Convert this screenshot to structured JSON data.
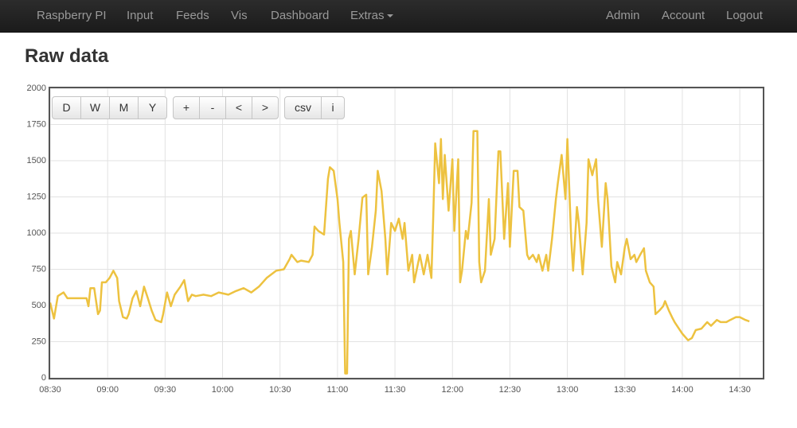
{
  "nav": {
    "left": [
      "Raspberry PI",
      "Input",
      "Feeds",
      "Vis",
      "Dashboard",
      "Extras"
    ],
    "right": [
      "Admin",
      "Account",
      "Logout"
    ]
  },
  "page_title": "Raw data",
  "toolbar": {
    "range": [
      "D",
      "W",
      "M",
      "Y"
    ],
    "move": [
      "+",
      "-",
      "<",
      ">"
    ],
    "tools": [
      "csv",
      "i"
    ]
  },
  "chart_data": {
    "type": "line",
    "color": "#edc240",
    "grid": true,
    "xlim": [
      "08:30",
      "14:42"
    ],
    "xticks": [
      "08:30",
      "09:00",
      "09:30",
      "10:00",
      "10:30",
      "11:00",
      "11:30",
      "12:00",
      "12:30",
      "13:00",
      "13:30",
      "14:00",
      "14:30"
    ],
    "ylim": [
      0,
      2000
    ],
    "yticks": [
      0,
      250,
      500,
      750,
      1000,
      1250,
      1500,
      1750,
      2000
    ],
    "x": [
      "08:30",
      "08:32",
      "08:34",
      "08:37",
      "08:39",
      "08:49",
      "08:50",
      "08:51",
      "08:53",
      "08:55",
      "08:56",
      "08:57",
      "08:59",
      "09:01",
      "09:03",
      "09:05",
      "09:06",
      "09:08",
      "09:10",
      "09:11",
      "09:13",
      "09:15",
      "09:17",
      "09:19",
      "09:21",
      "09:23",
      "09:25",
      "09:28",
      "09:29",
      "09:31",
      "09:33",
      "09:35",
      "09:38",
      "09:40",
      "09:42",
      "09:44",
      "09:46",
      "09:50",
      "09:54",
      "09:58",
      "10:03",
      "10:07",
      "10:11",
      "10:15",
      "10:19",
      "10:23",
      "10:28",
      "10:32",
      "10:35",
      "10:36",
      "10:39",
      "10:41",
      "10:45",
      "10:47",
      "10:48",
      "10:50",
      "10:53",
      "10:55",
      "10:56",
      "10:58",
      "11:00",
      "11:01",
      "11:03",
      "11:04",
      "11:05",
      "11:06",
      "11:07",
      "11:09",
      "11:11",
      "11:13",
      "11:15",
      "11:16",
      "11:18",
      "11:20",
      "11:21",
      "11:23",
      "11:25",
      "11:26",
      "11:28",
      "11:30",
      "11:32",
      "11:34",
      "11:35",
      "11:37",
      "11:39",
      "11:40",
      "11:43",
      "11:45",
      "11:47",
      "11:49",
      "11:50",
      "11:51",
      "11:53",
      "11:54",
      "11:55",
      "11:56",
      "11:58",
      "12:00",
      "12:01",
      "12:03",
      "12:04",
      "12:05",
      "12:07",
      "12:08",
      "12:10",
      "12:11",
      "12:13",
      "12:14",
      "12:15",
      "12:17",
      "12:19",
      "12:20",
      "12:22",
      "12:24",
      "12:25",
      "12:27",
      "12:29",
      "12:30",
      "12:32",
      "12:34",
      "12:35",
      "12:37",
      "12:39",
      "12:40",
      "12:42",
      "12:44",
      "12:45",
      "12:47",
      "12:49",
      "12:50",
      "12:52",
      "12:54",
      "12:55",
      "12:57",
      "12:59",
      "13:00",
      "13:02",
      "13:03",
      "13:05",
      "13:06",
      "13:08",
      "13:10",
      "13:11",
      "13:13",
      "13:15",
      "13:16",
      "13:18",
      "13:20",
      "13:21",
      "13:23",
      "13:25",
      "13:26",
      "13:28",
      "13:30",
      "13:31",
      "13:33",
      "13:35",
      "13:36",
      "13:38",
      "13:40",
      "13:41",
      "13:43",
      "13:45",
      "13:46",
      "13:48",
      "13:50",
      "13:51",
      "13:53",
      "13:55",
      "13:56",
      "13:58",
      "14:00",
      "14:03",
      "14:05",
      "14:07",
      "14:10",
      "14:13",
      "14:15",
      "14:18",
      "14:20",
      "14:23",
      "14:25",
      "14:28",
      "14:30",
      "14:33",
      "14:35"
    ],
    "values": [
      520,
      410,
      565,
      590,
      550,
      550,
      495,
      620,
      620,
      440,
      465,
      660,
      660,
      690,
      740,
      690,
      530,
      420,
      410,
      440,
      550,
      600,
      495,
      630,
      550,
      465,
      400,
      385,
      440,
      590,
      495,
      575,
      630,
      675,
      530,
      575,
      565,
      575,
      565,
      590,
      575,
      600,
      620,
      590,
      630,
      690,
      740,
      750,
      820,
      850,
      800,
      810,
      800,
      850,
      1045,
      1015,
      990,
      1375,
      1455,
      1430,
      1235,
      1070,
      800,
      30,
      30,
      960,
      1015,
      715,
      960,
      1245,
      1265,
      715,
      905,
      1155,
      1430,
      1290,
      960,
      715,
      1070,
      1015,
      1100,
      960,
      1070,
      740,
      850,
      660,
      850,
      715,
      850,
      690,
      1125,
      1620,
      1345,
      1650,
      1235,
      1540,
      1155,
      1510,
      1015,
      1510,
      660,
      740,
      1015,
      960,
      1210,
      1705,
      1705,
      800,
      660,
      740,
      1235,
      850,
      960,
      1565,
      1565,
      960,
      1345,
      905,
      1430,
      1430,
      1180,
      1155,
      850,
      820,
      850,
      800,
      850,
      740,
      850,
      740,
      960,
      1235,
      1345,
      1540,
      1235,
      1650,
      960,
      740,
      1180,
      1070,
      715,
      1070,
      1510,
      1400,
      1510,
      1235,
      905,
      1345,
      1235,
      770,
      660,
      800,
      715,
      905,
      960,
      820,
      850,
      800,
      850,
      895,
      740,
      660,
      630,
      440,
      465,
      495,
      530,
      465,
      410,
      385,
      345,
      305,
      260,
      275,
      330,
      340,
      385,
      360,
      400,
      385,
      385,
      400,
      420,
      420,
      400,
      390
    ]
  }
}
